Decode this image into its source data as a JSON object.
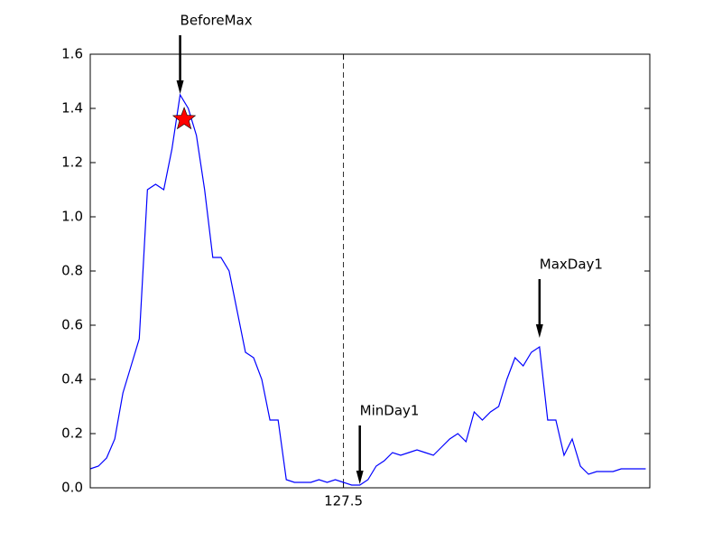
{
  "chart_data": {
    "type": "line",
    "x": [
      121.3,
      121.5,
      121.7,
      121.9,
      122.1,
      122.3,
      122.5,
      122.7,
      122.9,
      123.1,
      123.3,
      123.5,
      123.7,
      123.9,
      124.1,
      124.3,
      124.5,
      124.7,
      124.9,
      125.1,
      125.3,
      125.5,
      125.7,
      125.9,
      126.1,
      126.3,
      126.5,
      126.7,
      126.9,
      127.1,
      127.3,
      127.5,
      127.7,
      127.9,
      128.1,
      128.3,
      128.5,
      128.7,
      128.9,
      129.1,
      129.3,
      129.5,
      129.7,
      129.9,
      130.1,
      130.3,
      130.5,
      130.7,
      130.9,
      131.1,
      131.3,
      131.5,
      131.7,
      131.9,
      132.1,
      132.3,
      132.5,
      132.7,
      132.9,
      133.1,
      133.3,
      133.5,
      133.7,
      133.9,
      134.1,
      134.3,
      134.5,
      134.7,
      134.9
    ],
    "series": [
      {
        "color": "#0000ff",
        "values": [
          0.07,
          0.08,
          0.11,
          0.18,
          0.35,
          0.45,
          0.55,
          1.1,
          1.12,
          1.1,
          1.25,
          1.45,
          1.4,
          1.3,
          1.1,
          0.85,
          0.85,
          0.8,
          0.65,
          0.5,
          0.48,
          0.4,
          0.25,
          0.25,
          0.03,
          0.02,
          0.02,
          0.02,
          0.03,
          0.02,
          0.03,
          0.02,
          0.01,
          0.01,
          0.03,
          0.08,
          0.1,
          0.13,
          0.12,
          0.13,
          0.14,
          0.13,
          0.12,
          0.15,
          0.18,
          0.2,
          0.17,
          0.28,
          0.25,
          0.28,
          0.3,
          0.4,
          0.48,
          0.45,
          0.5,
          0.52,
          0.25,
          0.25,
          0.12,
          0.18,
          0.08,
          0.05,
          0.06,
          0.06,
          0.06,
          0.07,
          0.07,
          0.07,
          0.07
        ]
      }
    ],
    "xlim": [
      121.3,
      135.0
    ],
    "xticks": [
      127.5
    ],
    "ylim": [
      0,
      1.6
    ],
    "yticks": [
      {
        "value": 0,
        "label": "0.0"
      },
      0.2,
      0.4,
      0.6,
      0.8,
      {
        "value": 1,
        "label": "1.0"
      },
      1.2,
      1.4,
      1.6
    ],
    "vline": {
      "x": 127.5,
      "color": "#000000"
    },
    "marker": {
      "x": 123.6,
      "y": 1.36,
      "color": "#ff0000"
    },
    "annotations": [
      {
        "text": "BeforeMax",
        "x": 123.5,
        "y": 1.45
      },
      {
        "text": "MinDay1",
        "x": 127.9,
        "y": 0.01
      },
      {
        "text": "MaxDay1",
        "x": 132.3,
        "y": 0.55
      }
    ]
  }
}
